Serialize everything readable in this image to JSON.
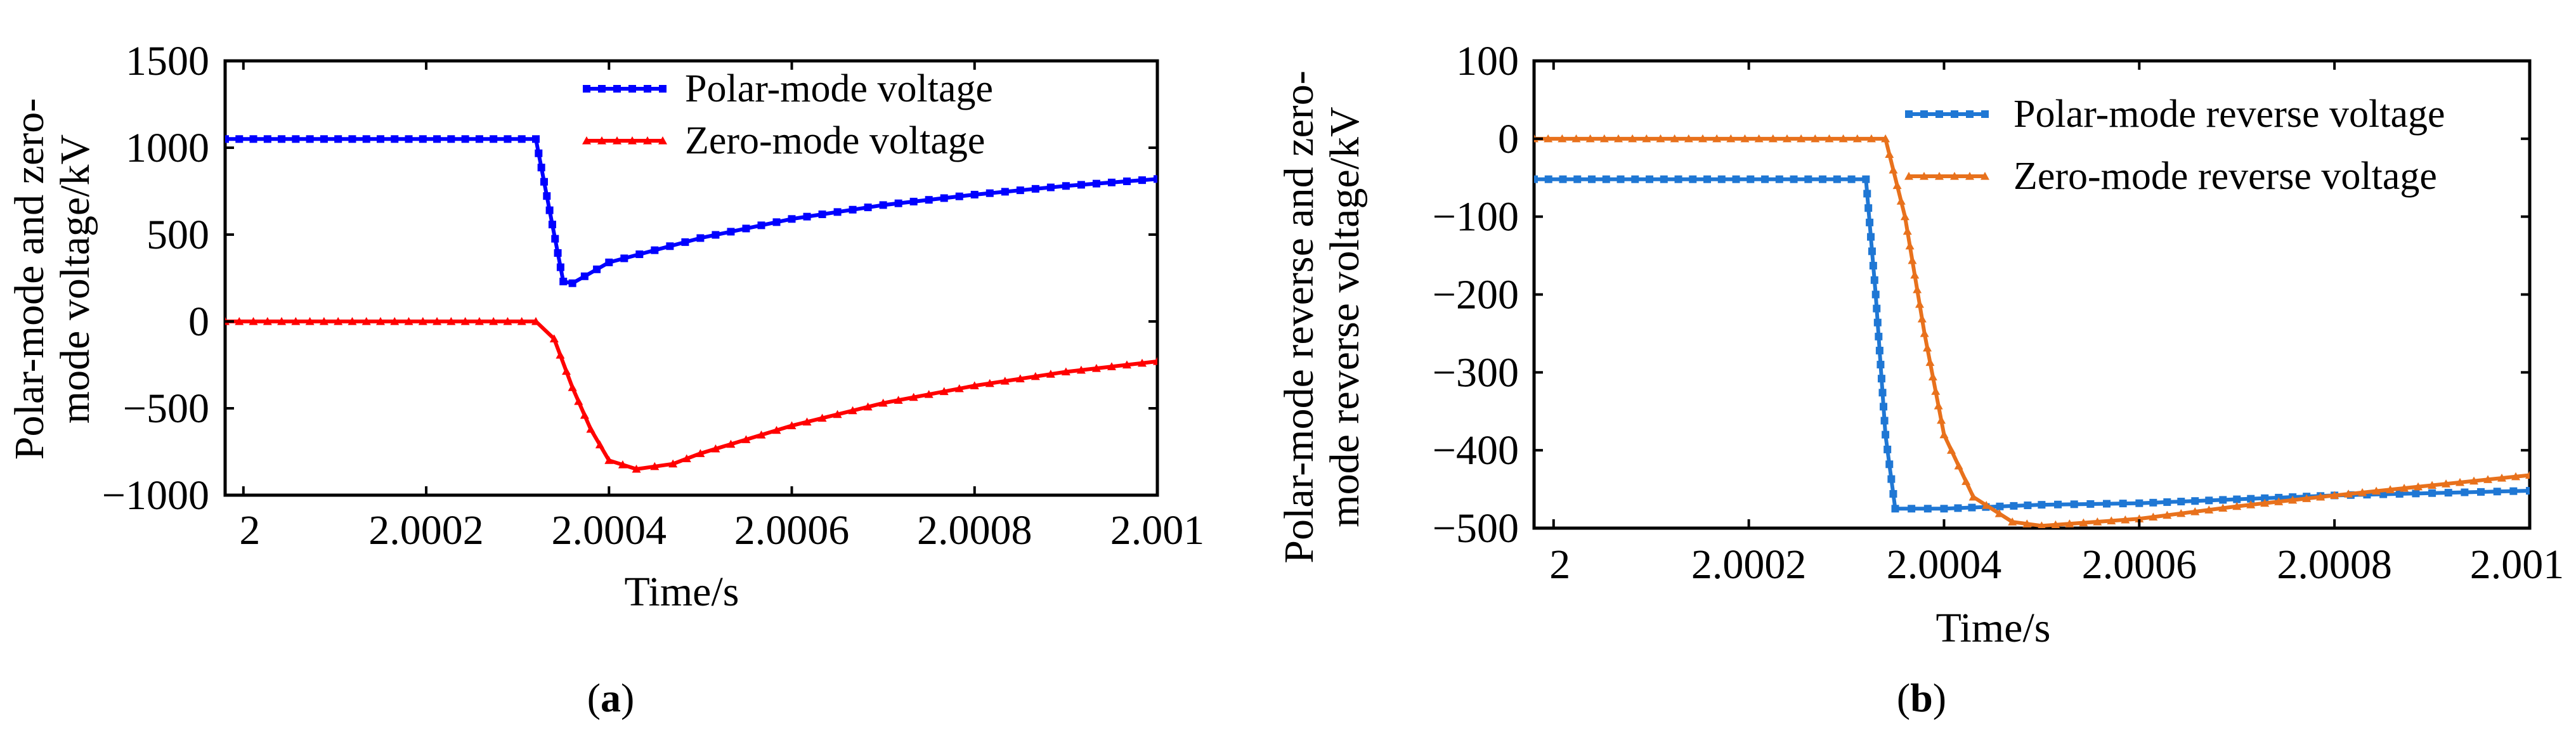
{
  "chart_data": [
    {
      "type": "line",
      "panel_label": "a",
      "title": "",
      "xlabel": "Time/s",
      "ylabel_lines": [
        "Polar-mode  and zero-",
        "mode voltage/kV"
      ],
      "xlim": [
        1.99998,
        2.001
      ],
      "ylim": [
        -1000,
        1500
      ],
      "xticks": [
        2,
        2.0002,
        2.0004,
        2.0006,
        2.0008,
        2.001
      ],
      "xtick_labels": [
        "2",
        "2.0002",
        "2.0004",
        "2.0006",
        "2.0008",
        "2.001"
      ],
      "yticks": [
        1500,
        1000,
        500,
        0,
        -500,
        -1000
      ],
      "ytick_labels": [
        "1500",
        "1000",
        "500",
        "0",
        "−500",
        "−1000"
      ],
      "legend_position": "top-right",
      "series": [
        {
          "name": "Polar-mode voltage",
          "color": "#0000ff",
          "marker": "square",
          "x": [
            1.99998,
            2.00032,
            2.00035,
            2.00036,
            2.0004,
            2.0005,
            2.0006,
            2.0007,
            2.0008,
            2.0009,
            2.001
          ],
          "y": [
            1050,
            1050,
            230,
            220,
            340,
            480,
            590,
            670,
            730,
            780,
            820
          ]
        },
        {
          "name": "Zero-mode voltage",
          "color": "#ff0000",
          "marker": "triangle",
          "x": [
            1.99998,
            2.00032,
            2.00034,
            2.00036,
            2.00038,
            2.0004,
            2.00043,
            2.00047,
            2.0005,
            2.0006,
            2.0007,
            2.0008,
            2.0009,
            2.001
          ],
          "y": [
            0,
            0,
            -100,
            -380,
            -620,
            -800,
            -850,
            -820,
            -760,
            -600,
            -470,
            -370,
            -290,
            -230
          ]
        }
      ]
    },
    {
      "type": "line",
      "panel_label": "b",
      "title": "",
      "xlabel": "Time/s",
      "ylabel_lines": [
        "Polar-mode reverse and zero-",
        "mode reverse voltage/kV"
      ],
      "xlim": [
        1.99998,
        2.001
      ],
      "ylim": [
        -500,
        100
      ],
      "xticks": [
        2,
        2.0002,
        2.0004,
        2.0006,
        2.0008,
        2.001
      ],
      "xtick_labels": [
        "2",
        "2.0002",
        "2.0004",
        "2.0006",
        "2.0008",
        "2.001"
      ],
      "yticks": [
        100,
        0,
        -100,
        -200,
        -300,
        -400,
        -500
      ],
      "ytick_labels": [
        "100",
        "0",
        "−100",
        "−200",
        "−300",
        "−400",
        "−500"
      ],
      "legend_position": "top-right",
      "series": [
        {
          "name": "Polar-mode reverse voltage",
          "color": "#1f77d4",
          "marker": "square",
          "x": [
            1.99998,
            2.00032,
            2.00033,
            2.00034,
            2.00035,
            2.0004,
            2.0005,
            2.0006,
            2.0007,
            2.0008,
            2.0009,
            2.001
          ],
          "y": [
            -52,
            -52,
            -200,
            -380,
            -475,
            -475,
            -470,
            -468,
            -463,
            -458,
            -455,
            -452
          ],
          "marker_every": 3
        },
        {
          "name": "Zero-mode reverse voltage",
          "color": "#e8711c",
          "marker": "triangle",
          "x": [
            1.99998,
            2.00034,
            2.00036,
            2.00038,
            2.0004,
            2.00043,
            2.00047,
            2.0005,
            2.0006,
            2.0007,
            2.0008,
            2.0009,
            2.001
          ],
          "y": [
            0,
            0,
            -100,
            -250,
            -380,
            -460,
            -492,
            -497,
            -488,
            -472,
            -458,
            -445,
            -432
          ]
        }
      ]
    }
  ]
}
